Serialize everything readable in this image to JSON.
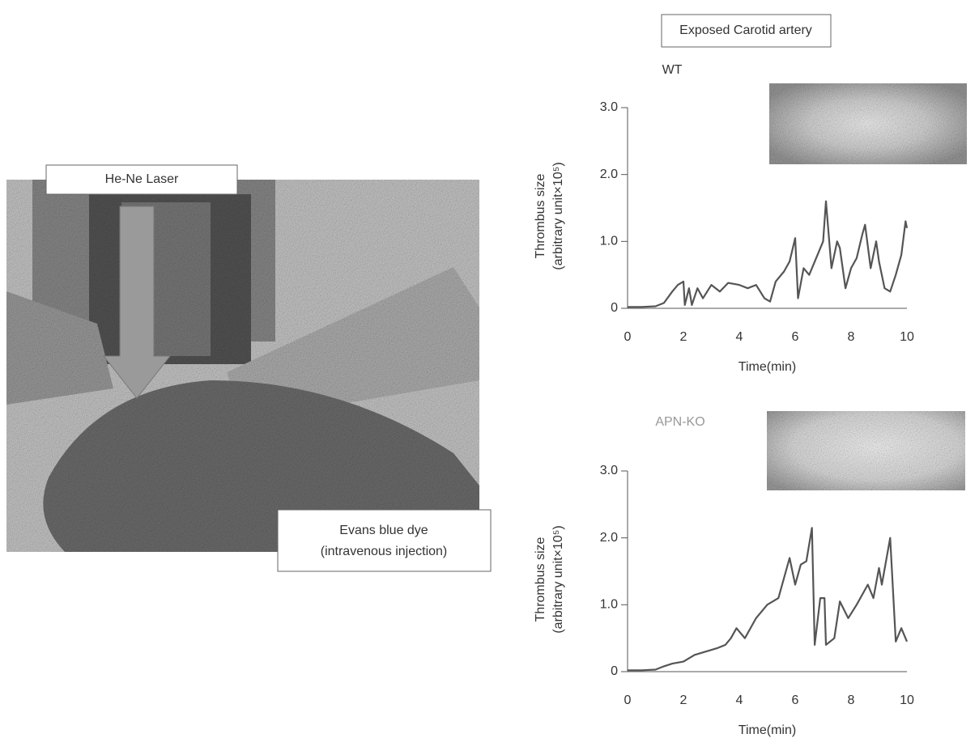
{
  "header": "Exposed Carotid artery",
  "photo": {
    "laser_label": "He-Ne Laser",
    "dye_label": [
      "Evans blue dye",
      "(intravenous injection)"
    ]
  },
  "chart_data": [
    {
      "type": "line",
      "title": "WT",
      "xlabel": "Time(min)",
      "ylabel": "Thrombus size",
      "ylabel_sub": "(arbitrary unit×10⁵)",
      "color": "#555555",
      "title_color": "#333333",
      "xlim": [
        0,
        10
      ],
      "xticks": [
        0,
        2,
        4,
        6,
        8,
        10
      ],
      "ylim": [
        0,
        3
      ],
      "yticks": [
        0,
        {
          "value": 1,
          "label": "1.0"
        },
        {
          "value": 2,
          "label": "2.0"
        },
        {
          "value": 3,
          "label": "3.0"
        }
      ],
      "x": [
        0,
        0.5,
        1,
        1.3,
        1.6,
        1.8,
        2.0,
        2.05,
        2.2,
        2.3,
        2.5,
        2.7,
        3.0,
        3.3,
        3.6,
        4.0,
        4.3,
        4.6,
        4.9,
        5.1,
        5.3,
        5.6,
        5.8,
        6.0,
        6.1,
        6.3,
        6.5,
        6.8,
        7.0,
        7.1,
        7.3,
        7.5,
        7.6,
        7.8,
        8.0,
        8.2,
        8.4,
        8.5,
        8.7,
        8.9,
        9.0,
        9.2,
        9.4,
        9.6,
        9.8,
        9.95,
        10
      ],
      "values": [
        0.02,
        0.02,
        0.03,
        0.08,
        0.25,
        0.35,
        0.4,
        0.05,
        0.3,
        0.05,
        0.3,
        0.15,
        0.35,
        0.25,
        0.38,
        0.35,
        0.3,
        0.35,
        0.15,
        0.1,
        0.4,
        0.55,
        0.7,
        1.05,
        0.15,
        0.6,
        0.5,
        0.8,
        1.0,
        1.6,
        0.6,
        1.0,
        0.9,
        0.3,
        0.6,
        0.75,
        1.1,
        1.25,
        0.6,
        1.0,
        0.7,
        0.3,
        0.25,
        0.5,
        0.8,
        1.3,
        1.2
      ]
    },
    {
      "type": "line",
      "title": "APN-KO",
      "xlabel": "Time(min)",
      "ylabel": "Thrombus size",
      "ylabel_sub": "(arbitrary unit×10⁵)",
      "color": "#555555",
      "title_color": "#999999",
      "xlim": [
        0,
        10
      ],
      "xticks": [
        0,
        2,
        4,
        6,
        8,
        10
      ],
      "ylim": [
        0,
        3
      ],
      "yticks": [
        0,
        {
          "value": 1,
          "label": "1.0"
        },
        {
          "value": 2,
          "label": "2.0"
        },
        {
          "value": 3,
          "label": "3.0"
        }
      ],
      "x": [
        0,
        0.5,
        1,
        1.3,
        1.6,
        2.0,
        2.4,
        2.8,
        3.2,
        3.5,
        3.7,
        3.9,
        4.2,
        4.6,
        5.0,
        5.4,
        5.8,
        6.0,
        6.2,
        6.4,
        6.6,
        6.7,
        6.9,
        7.05,
        7.1,
        7.4,
        7.6,
        7.9,
        8.2,
        8.6,
        8.8,
        9.0,
        9.1,
        9.4,
        9.6,
        9.8,
        10
      ],
      "values": [
        0.02,
        0.02,
        0.03,
        0.08,
        0.12,
        0.15,
        0.25,
        0.3,
        0.35,
        0.4,
        0.5,
        0.65,
        0.5,
        0.8,
        1.0,
        1.1,
        1.7,
        1.3,
        1.6,
        1.65,
        2.15,
        0.4,
        1.1,
        1.1,
        0.4,
        0.5,
        1.05,
        0.8,
        1.0,
        1.3,
        1.1,
        1.55,
        1.3,
        2.0,
        0.45,
        0.65,
        0.45
      ]
    }
  ]
}
